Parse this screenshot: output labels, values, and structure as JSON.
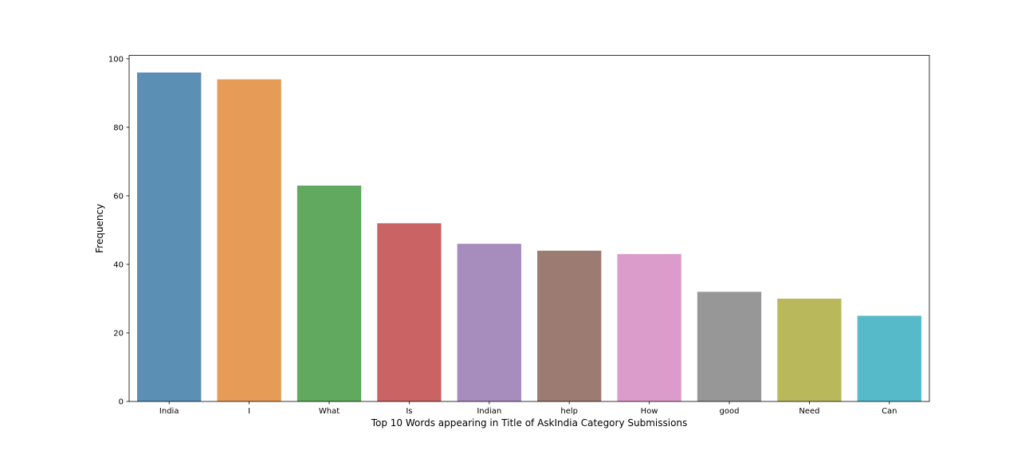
{
  "chart_data": {
    "type": "bar",
    "title": "",
    "xlabel": "Top 10 Words appearing in Title of AskIndia Category Submissions",
    "ylabel": "Frequency",
    "categories": [
      "India",
      "I",
      "What",
      "Is",
      "Indian",
      "help",
      "How",
      "good",
      "Need",
      "Can"
    ],
    "values": [
      96,
      94,
      63,
      52,
      46,
      44,
      43,
      32,
      30,
      25
    ],
    "colors": [
      "#5b8fb4",
      "#e69b56",
      "#60a95f",
      "#ca6464",
      "#a78dbe",
      "#9c7b73",
      "#db9bcb",
      "#979797",
      "#b9b95c",
      "#56bac8"
    ],
    "ylim": [
      0,
      101
    ],
    "yticks": [
      0,
      20,
      40,
      60,
      80,
      100
    ],
    "grid": false,
    "legend": "none"
  }
}
